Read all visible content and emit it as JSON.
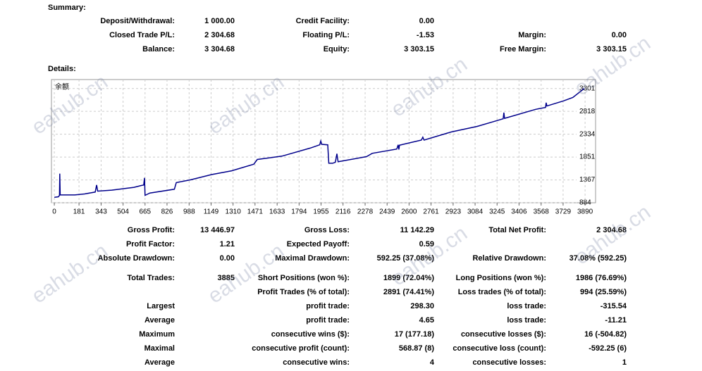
{
  "summary": {
    "title": "Summary:",
    "rows": [
      [
        {
          "label": "Deposit/Withdrawal:",
          "value": "1 000.00"
        },
        {
          "label": "Credit Facility:",
          "value": "0.00"
        },
        null
      ],
      [
        {
          "label": "Closed Trade P/L:",
          "value": "2 304.68"
        },
        {
          "label": "Floating P/L:",
          "value": "-1.53"
        },
        {
          "label": "Margin:",
          "value": "0.00"
        }
      ],
      [
        {
          "label": "Balance:",
          "value": "3 304.68"
        },
        {
          "label": "Equity:",
          "value": "3 303.15"
        },
        {
          "label": "Free Margin:",
          "value": "3 303.15"
        }
      ]
    ]
  },
  "details": {
    "title": "Details:",
    "rows": [
      [
        {
          "label": "Gross Profit:",
          "value": "13 446.97"
        },
        {
          "label": "Gross Loss:",
          "value": "11 142.29"
        },
        {
          "label": "Total Net Profit:",
          "value": "2 304.68"
        }
      ],
      [
        {
          "label": "Profit Factor:",
          "value": "1.21"
        },
        {
          "label": "Expected Payoff:",
          "value": "0.59"
        },
        null
      ],
      [
        {
          "label": "Absolute Drawdown:",
          "value": "0.00"
        },
        {
          "label": "Maximal Drawdown:",
          "value": "592.25 (37.08%)"
        },
        {
          "label": "Relative Drawdown:",
          "value": "37.08% (592.25)"
        }
      ],
      [
        {
          "label": "Total Trades:",
          "value": "3885"
        },
        {
          "label": "Short Positions (won %):",
          "value": "1899 (72.04%)"
        },
        {
          "label": "Long Positions (won %):",
          "value": "1986 (76.69%)"
        }
      ],
      [
        null,
        {
          "label": "Profit Trades (% of total):",
          "value": "2891 (74.41%)"
        },
        {
          "label": "Loss trades (% of total):",
          "value": "994 (25.59%)"
        }
      ],
      [
        {
          "label": "Largest"
        },
        {
          "label": "profit trade:",
          "value": "298.30"
        },
        {
          "label": "loss trade:",
          "value": "-315.54"
        }
      ],
      [
        {
          "label": "Average"
        },
        {
          "label": "profit trade:",
          "value": "4.65"
        },
        {
          "label": "loss trade:",
          "value": "-11.21"
        }
      ],
      [
        {
          "label": "Maximum"
        },
        {
          "label": "consecutive wins ($):",
          "value": "17 (177.18)"
        },
        {
          "label": "consecutive losses ($):",
          "value": "16 (-504.82)"
        }
      ],
      [
        {
          "label": "Maximal"
        },
        {
          "label": "consecutive profit (count):",
          "value": "568.87 (8)"
        },
        {
          "label": "consecutive loss (count):",
          "value": "-592.25 (6)"
        }
      ],
      [
        {
          "label": "Average"
        },
        {
          "label": "consecutive wins:",
          "value": "4"
        },
        {
          "label": "consecutive losses:",
          "value": "1"
        }
      ]
    ]
  },
  "watermark": "eahub.cn",
  "chart_data": {
    "type": "line",
    "title": "余额",
    "color": "#00008b",
    "grid": true,
    "xlim": [
      -21,
      3967
    ],
    "ylim": [
      884,
      3490
    ],
    "xticks": [
      0,
      181,
      343,
      504,
      665,
      826,
      988,
      1149,
      1310,
      1471,
      1633,
      1794,
      1955,
      2116,
      2278,
      2439,
      2600,
      2761,
      2923,
      3084,
      3245,
      3406,
      3568,
      3729,
      3890
    ],
    "yticks": [
      884,
      1367,
      1851,
      2334,
      2818,
      3301
    ],
    "x": [
      0,
      30,
      38,
      40,
      43,
      150,
      222,
      300,
      310,
      318,
      420,
      584,
      640,
      655,
      661,
      665,
      700,
      880,
      894,
      1000,
      1152,
      1300,
      1462,
      1488,
      1668,
      1875,
      1945,
      1953,
      1960,
      2004,
      2012,
      2040,
      2060,
      2071,
      2080,
      2288,
      2330,
      2510,
      2520,
      2525,
      2530,
      2690,
      2701,
      2710,
      2908,
      3100,
      3218,
      3290,
      3295,
      3300,
      3528,
      3600,
      3605,
      3610,
      3734,
      3800,
      3885
    ],
    "values": [
      1000,
      1010,
      1040,
      1500,
      1050,
      1050,
      1070,
      1110,
      1260,
      1130,
      1150,
      1210,
      1250,
      1260,
      1410,
      1040,
      1090,
      1170,
      1310,
      1370,
      1480,
      1560,
      1700,
      1800,
      1870,
      2040,
      2110,
      2190,
      2120,
      2110,
      1720,
      1720,
      1740,
      1920,
      1750,
      1860,
      1930,
      2020,
      2110,
      2010,
      2100,
      2210,
      2270,
      2210,
      2380,
      2500,
      2600,
      2660,
      2790,
      2670,
      2860,
      2900,
      3000,
      2930,
      3040,
      3110,
      3303
    ]
  }
}
